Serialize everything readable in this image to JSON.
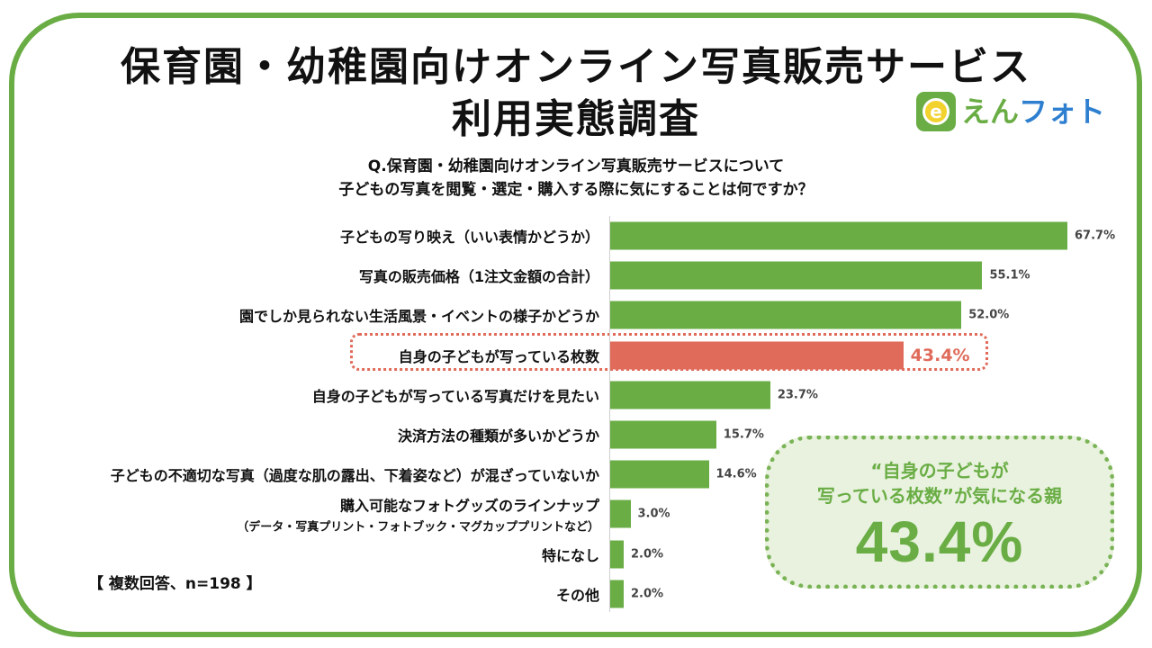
{
  "title": {
    "line1": "保育園・幼稚園向けオンライン写真販売サービス",
    "line2": "利用実態調査"
  },
  "logo": {
    "badge_letter": "e",
    "text_green": "えん",
    "text_blue": "フォト",
    "colors": {
      "badge": "#6aad45",
      "inner": "#f2d22e",
      "blue": "#2e7fd0"
    }
  },
  "question": {
    "line1": "Q.保育園・幼稚園向けオンライン写真販売サービスについて",
    "line2": "子どもの写真を閲覧・選定・購入する際に気にすることは何ですか？"
  },
  "note": "【 複数回答、n=198 】",
  "callout": {
    "line1": "“自身の子どもが",
    "line2": "写っている枚数”が気になる親",
    "value": "43.4%"
  },
  "colors": {
    "bar": "#6aad45",
    "highlight": "#e06b5a",
    "frame": "#6aad45"
  },
  "chart_data": {
    "type": "bar",
    "orientation": "horizontal",
    "unit": "%",
    "xlim": [
      0,
      100
    ],
    "highlight_index": 3,
    "categories": [
      "子どもの写り映え（いい表情かどうか）",
      "写真の販売価格（1注文金額の合計）",
      "園でしか見られない生活風景・イベントの様子かどうか",
      "自身の子どもが写っている枚数",
      "自身の子どもが写っている写真だけを見たい",
      "決済方法の種類が多いかどうか",
      "子どもの不適切な写真（過度な肌の露出、下着姿など）が混ざっていないか",
      "購入可能なフォトグッズのラインナップ",
      "特になし",
      "その他"
    ],
    "subcategories": [
      "",
      "",
      "",
      "",
      "",
      "",
      "",
      "（データ・写真プリント・フォトブック・マグカッププリントなど）",
      "",
      ""
    ],
    "values": [
      67.7,
      55.1,
      52.0,
      43.4,
      23.7,
      15.7,
      14.6,
      3.0,
      2.0,
      2.0
    ],
    "value_labels": [
      "67.7%",
      "55.1%",
      "52.0%",
      "43.4%",
      "23.7%",
      "15.7%",
      "14.6%",
      "3.0%",
      "2.0%",
      "2.0%"
    ]
  }
}
